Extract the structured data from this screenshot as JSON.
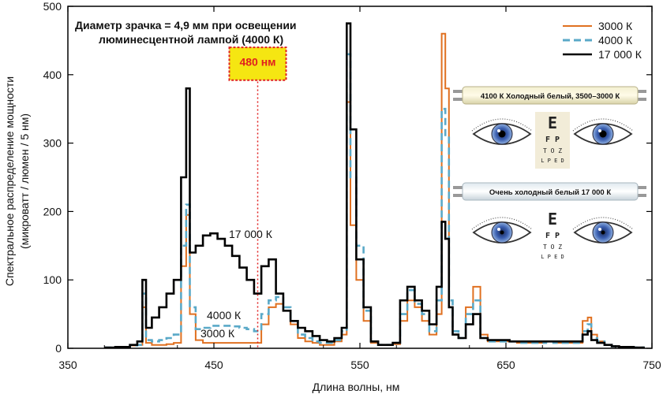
{
  "chart_data": {
    "type": "line",
    "title_line1": "Диаметр зрачка = 4,9 мм при освещении",
    "title_line2": "люминесцентной лампой (4000 К)",
    "xlabel": "Длина волны, нм",
    "ylabel_line1": "Спектральное распределение мощности",
    "ylabel_line2": "(микроватт / люмен / 5 нм)",
    "xlim": [
      350,
      750
    ],
    "ylim": [
      0,
      500
    ],
    "xticks": [
      350,
      450,
      550,
      650,
      750
    ],
    "yticks": [
      0,
      100,
      200,
      300,
      400,
      500
    ],
    "xtick_labels": [
      "350",
      "450",
      "550",
      "650",
      "750"
    ],
    "ytick_labels": [
      "0",
      "100",
      "200",
      "300",
      "400",
      "500"
    ],
    "legend": [
      "3000 К",
      "4000 К",
      "17 000 К"
    ],
    "marker_wavelength": 480,
    "marker_label": "480 нм",
    "curve_labels": [
      "17 000 К",
      "4000 К",
      "3000 К"
    ],
    "series": [
      {
        "name": "3000 К",
        "color": "#e07020",
        "dash": "",
        "x": [
          375,
          380,
          385,
          390,
          395,
          400,
          402,
          405,
          410,
          415,
          420,
          425,
          430,
          432,
          435,
          440,
          445,
          450,
          455,
          460,
          465,
          470,
          475,
          480,
          485,
          490,
          495,
          500,
          505,
          510,
          515,
          520,
          525,
          530,
          535,
          540,
          542,
          545,
          550,
          555,
          560,
          565,
          570,
          575,
          580,
          585,
          590,
          595,
          600,
          605,
          607,
          610,
          612,
          615,
          620,
          625,
          630,
          635,
          640,
          645,
          650,
          655,
          660,
          665,
          670,
          675,
          680,
          685,
          690,
          695,
          700,
          705,
          707,
          710,
          715,
          720,
          725,
          730,
          735,
          740,
          745
        ],
        "y": [
          1,
          1,
          2,
          2,
          4,
          5,
          60,
          8,
          5,
          5,
          6,
          8,
          120,
          195,
          50,
          12,
          8,
          8,
          8,
          8,
          8,
          8,
          8,
          8,
          35,
          60,
          65,
          55,
          35,
          15,
          10,
          8,
          5,
          5,
          10,
          20,
          360,
          180,
          100,
          40,
          8,
          5,
          5,
          6,
          40,
          70,
          60,
          40,
          20,
          50,
          460,
          380,
          60,
          20,
          15,
          60,
          90,
          20,
          10,
          10,
          10,
          10,
          8,
          8,
          8,
          8,
          10,
          8,
          8,
          8,
          8,
          40,
          45,
          20,
          10,
          5,
          3,
          2,
          2,
          1,
          1
        ]
      },
      {
        "name": "4000 К",
        "color": "#5aa9c8",
        "dash": "9,5",
        "x": [
          375,
          380,
          385,
          390,
          395,
          400,
          402,
          405,
          410,
          415,
          420,
          425,
          430,
          432,
          435,
          440,
          445,
          450,
          455,
          460,
          465,
          470,
          475,
          480,
          485,
          490,
          495,
          500,
          505,
          510,
          515,
          520,
          525,
          530,
          535,
          540,
          542,
          545,
          550,
          555,
          560,
          565,
          570,
          575,
          580,
          585,
          590,
          595,
          600,
          605,
          607,
          610,
          612,
          615,
          620,
          625,
          630,
          635,
          640,
          645,
          650,
          655,
          660,
          665,
          670,
          675,
          680,
          685,
          690,
          695,
          700,
          705,
          707,
          710,
          715,
          720,
          725,
          730,
          735,
          740,
          745
        ],
        "y": [
          1,
          1,
          2,
          2,
          4,
          5,
          80,
          12,
          10,
          12,
          15,
          20,
          150,
          210,
          60,
          28,
          30,
          33,
          33,
          33,
          32,
          30,
          28,
          25,
          50,
          70,
          75,
          60,
          40,
          20,
          15,
          10,
          8,
          8,
          12,
          25,
          430,
          250,
          150,
          55,
          10,
          5,
          5,
          8,
          50,
          85,
          65,
          50,
          25,
          70,
          350,
          310,
          70,
          25,
          15,
          50,
          70,
          15,
          10,
          10,
          10,
          10,
          8,
          8,
          8,
          8,
          10,
          8,
          8,
          8,
          8,
          25,
          35,
          15,
          10,
          5,
          3,
          2,
          2,
          1,
          1
        ]
      },
      {
        "name": "17 000 К",
        "color": "#000000",
        "dash": "",
        "x": [
          375,
          380,
          385,
          390,
          395,
          400,
          402,
          405,
          410,
          415,
          420,
          425,
          430,
          432,
          435,
          440,
          445,
          450,
          455,
          460,
          465,
          470,
          475,
          480,
          485,
          490,
          495,
          500,
          505,
          510,
          515,
          520,
          525,
          530,
          535,
          540,
          542,
          545,
          550,
          555,
          560,
          565,
          570,
          575,
          580,
          585,
          590,
          595,
          600,
          605,
          607,
          610,
          612,
          615,
          620,
          625,
          630,
          635,
          640,
          645,
          650,
          655,
          660,
          665,
          670,
          675,
          680,
          685,
          690,
          695,
          700,
          705,
          707,
          710,
          715,
          720,
          725,
          730,
          735,
          740,
          745
        ],
        "y": [
          1,
          1,
          2,
          2,
          5,
          10,
          100,
          30,
          45,
          60,
          80,
          100,
          250,
          380,
          140,
          150,
          165,
          168,
          160,
          150,
          135,
          118,
          100,
          80,
          120,
          130,
          80,
          55,
          40,
          30,
          25,
          18,
          12,
          10,
          15,
          30,
          475,
          320,
          130,
          60,
          10,
          5,
          5,
          8,
          70,
          90,
          70,
          55,
          35,
          90,
          185,
          160,
          60,
          20,
          15,
          35,
          50,
          15,
          12,
          12,
          12,
          10,
          10,
          10,
          10,
          10,
          10,
          10,
          10,
          10,
          10,
          20,
          25,
          12,
          8,
          5,
          3,
          2,
          2,
          1,
          1
        ]
      }
    ]
  },
  "inset": {
    "tube1_label": "4100 К Холодный белый, 3500–3000 К",
    "tube2_label": "Очень холодный белый 17 000 К",
    "eye_chart_rows": [
      "E",
      "F P",
      "T O Z",
      "L P E D"
    ]
  }
}
